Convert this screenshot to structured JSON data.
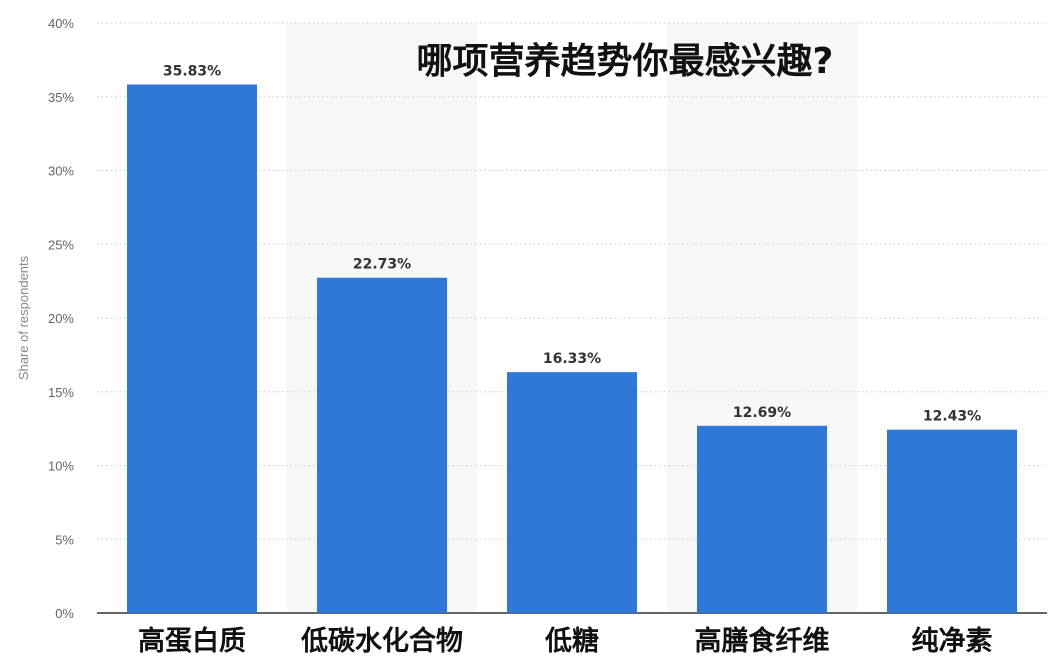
{
  "chart_data": {
    "type": "bar",
    "title": "哪项营养趋势你最感兴趣?",
    "ylabel": "Share of respondents",
    "xlabel": "",
    "categories": [
      "高蛋白质",
      "低碳水化合物",
      "低糖",
      "高膳食纤维",
      "纯净素"
    ],
    "values": [
      35.83,
      22.73,
      16.33,
      12.69,
      12.43
    ],
    "data_labels": [
      "35.83%",
      "22.73%",
      "16.33%",
      "12.69%",
      "12.43%"
    ],
    "ylim": [
      0,
      40
    ],
    "yticks": [
      0,
      5,
      10,
      15,
      20,
      25,
      30,
      35,
      40
    ],
    "ytick_labels": [
      "0%",
      "5%",
      "10%",
      "15%",
      "20%",
      "25%",
      "30%",
      "35%",
      "40%"
    ],
    "grid": true,
    "bar_color": "#2e78d7",
    "alt_band_color": "#f7f7f7"
  }
}
